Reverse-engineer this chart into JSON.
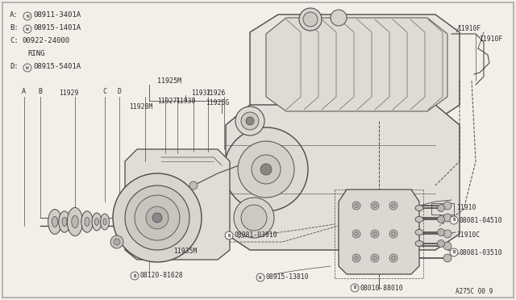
{
  "bg_color": "#f2efe9",
  "line_color": "#4a4a4a",
  "text_color": "#2a2a2a",
  "legend": [
    [
      "A:",
      "N",
      "08911-3401A"
    ],
    [
      "B:",
      "W",
      "08915-1401A"
    ],
    [
      "C:",
      "",
      "00922-24000"
    ],
    [
      "",
      "",
      "RING"
    ],
    [
      "D:",
      "W",
      "08915-5401A"
    ]
  ],
  "bottom_right_text": "A275C 00 9"
}
